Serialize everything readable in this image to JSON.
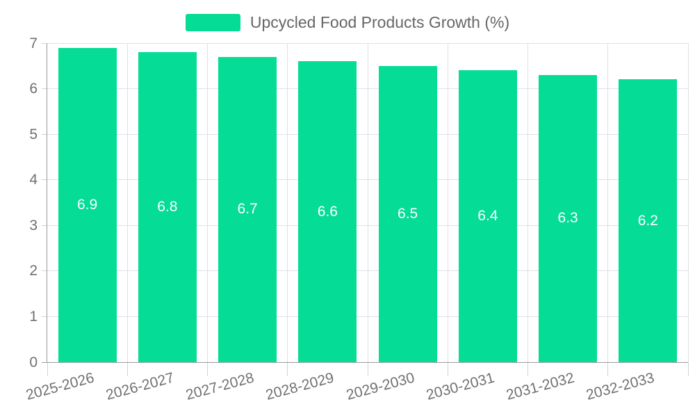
{
  "chart_data": {
    "type": "bar",
    "title": "",
    "legend": {
      "label": "Upcycled Food Products Growth (%)",
      "position": "top-center"
    },
    "categories": [
      "2025-2026",
      "2026-2027",
      "2027-2028",
      "2028-2029",
      "2029-2030",
      "2030-2031",
      "2031-2032",
      "2032-2033"
    ],
    "series": [
      {
        "name": "Upcycled Food Products Growth (%)",
        "values": [
          6.9,
          6.8,
          6.7,
          6.6,
          6.5,
          6.4,
          6.3,
          6.2
        ]
      }
    ],
    "value_labels": [
      "6.9",
      "6.8",
      "6.7",
      "6.6",
      "6.5",
      "6.4",
      "6.3",
      "6.2"
    ],
    "xlabel": "",
    "ylabel": "",
    "ylim": [
      0,
      7
    ],
    "yticks": [
      0,
      1,
      2,
      3,
      4,
      5,
      6,
      7
    ],
    "grid": true,
    "x_label_rotation_deg": -15,
    "colors": {
      "bar": "#05DC96",
      "value_label": "#FFFFFF",
      "axis_text": "#707070",
      "legend_text": "#666666",
      "grid_line": "#E0E0E5",
      "axis_line": "#999999",
      "tick_line": "#D2D2D8"
    }
  }
}
